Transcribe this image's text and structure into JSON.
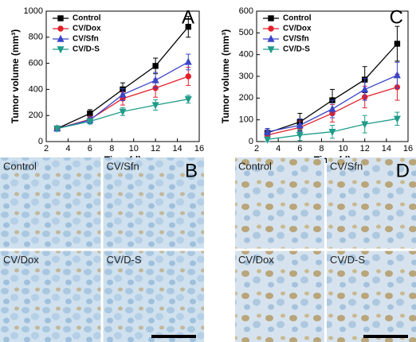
{
  "chart_data": [
    {
      "type": "line",
      "panel": "A",
      "x_label": "Time (d)",
      "y_label": "Tumor volume (mm³)",
      "x": [
        3,
        6,
        9,
        12,
        15
      ],
      "xlim": [
        2,
        16
      ],
      "xticks": [
        2,
        4,
        6,
        8,
        10,
        12,
        14,
        16
      ],
      "ylim": [
        0,
        1000
      ],
      "yticks": [
        0,
        200,
        400,
        600,
        800,
        1000
      ],
      "legend": "upper left",
      "series": [
        {
          "name": "Control",
          "color": "#000000",
          "marker": "square",
          "values": [
            100,
            215,
            400,
            580,
            880
          ],
          "errors": [
            10,
            30,
            50,
            60,
            80
          ]
        },
        {
          "name": "CV/Dox",
          "color": "#e3202a",
          "marker": "circle",
          "values": [
            100,
            170,
            330,
            410,
            500
          ],
          "errors": [
            10,
            25,
            50,
            70,
            70
          ]
        },
        {
          "name": "CV/Sfn",
          "color": "#3a45c8",
          "marker": "triangle",
          "values": [
            100,
            165,
            360,
            470,
            610
          ],
          "errors": [
            10,
            25,
            45,
            60,
            60
          ]
        },
        {
          "name": "CV/D-S",
          "color": "#1f9c8a",
          "marker": "triangle-down",
          "values": [
            100,
            155,
            230,
            280,
            325
          ],
          "errors": [
            10,
            20,
            30,
            40,
            30
          ]
        }
      ]
    },
    {
      "type": "line",
      "panel": "C",
      "x_label": "Time (d)",
      "y_label": "Tumor volume (mm³)",
      "x": [
        3,
        6,
        9,
        12,
        15
      ],
      "xlim": [
        2,
        16
      ],
      "xticks": [
        2,
        4,
        6,
        8,
        10,
        12,
        14,
        16
      ],
      "ylim": [
        0,
        600
      ],
      "yticks": [
        0,
        100,
        200,
        300,
        400,
        500,
        600
      ],
      "legend": "upper left",
      "series": [
        {
          "name": "Control",
          "color": "#000000",
          "marker": "square",
          "values": [
            40,
            90,
            190,
            285,
            450
          ],
          "errors": [
            20,
            40,
            50,
            60,
            80
          ]
        },
        {
          "name": "CV/Dox",
          "color": "#e3202a",
          "marker": "circle",
          "values": [
            30,
            65,
            130,
            205,
            250
          ],
          "errors": [
            15,
            30,
            40,
            50,
            60
          ]
        },
        {
          "name": "CV/Sfn",
          "color": "#3a45c8",
          "marker": "triangle",
          "values": [
            45,
            75,
            150,
            240,
            305
          ],
          "errors": [
            15,
            30,
            40,
            50,
            60
          ]
        },
        {
          "name": "CV/D-S",
          "color": "#1f9c8a",
          "marker": "triangle-down",
          "values": [
            10,
            30,
            45,
            80,
            105
          ],
          "errors": [
            10,
            25,
            30,
            40,
            30
          ]
        }
      ]
    }
  ],
  "images": [
    {
      "panel": "B",
      "labels": [
        "Control",
        "CV/Sfn",
        "CV/Dox",
        "CV/D-S"
      ]
    },
    {
      "panel": "D",
      "labels": [
        "Control",
        "CV/Sfn",
        "CV/Dox",
        "CV/D-S"
      ]
    }
  ]
}
